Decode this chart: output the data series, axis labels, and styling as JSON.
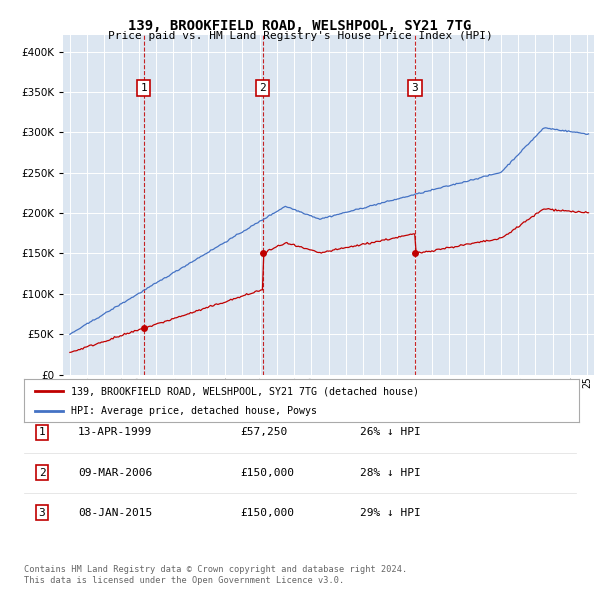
{
  "title": "139, BROOKFIELD ROAD, WELSHPOOL, SY21 7TG",
  "subtitle": "Price paid vs. HM Land Registry's House Price Index (HPI)",
  "red_label": "139, BROOKFIELD ROAD, WELSHPOOL, SY21 7TG (detached house)",
  "blue_label": "HPI: Average price, detached house, Powys",
  "footer1": "Contains HM Land Registry data © Crown copyright and database right 2024.",
  "footer2": "This data is licensed under the Open Government Licence v3.0.",
  "transactions": [
    {
      "num": 1,
      "date": "13-APR-1999",
      "price": "£57,250",
      "pct": "26% ↓ HPI",
      "year": 1999.28
    },
    {
      "num": 2,
      "date": "09-MAR-2006",
      "price": "£150,000",
      "pct": "28% ↓ HPI",
      "year": 2006.18
    },
    {
      "num": 3,
      "date": "08-JAN-2015",
      "price": "£150,000",
      "pct": "29% ↓ HPI",
      "year": 2015.02
    }
  ],
  "trans_prices": [
    57250,
    150000,
    150000
  ],
  "ylim": [
    0,
    420000
  ],
  "xlim_start": 1994.6,
  "xlim_end": 2025.4,
  "bg_color": "#dce6f1",
  "grid_color": "white",
  "red_color": "#c00000",
  "blue_color": "#4472c4"
}
